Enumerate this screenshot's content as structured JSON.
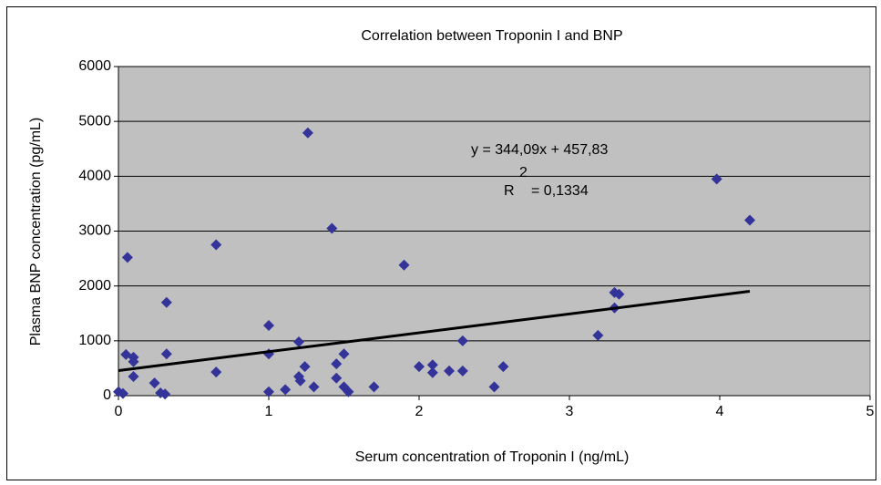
{
  "chart_data": {
    "type": "scatter",
    "title": "Correlation between Troponin I and BNP",
    "x_label": "Serum concentration of Troponin I (ng/mL)",
    "y_label": "Plasma BNP concentration (pg/mL)",
    "series": [
      {
        "color": "#333399",
        "x": [
          0,
          0.03,
          0.05,
          0.06,
          0.1,
          0.1,
          0.1,
          0.24,
          0.28,
          0.31,
          0.32,
          0.32,
          0.65,
          0.65,
          1.0,
          1.0,
          1.0,
          1.11,
          1.2,
          1.2,
          1.21,
          1.24,
          1.26,
          1.3,
          1.42,
          1.45,
          1.45,
          1.5,
          1.5,
          1.53,
          1.7,
          1.9,
          2.0,
          2.09,
          2.09,
          2.2,
          2.29,
          2.29,
          2.5,
          2.56,
          3.19,
          3.3,
          3.33,
          3.3,
          3.98,
          4.2
        ],
        "values": [
          70,
          40,
          750,
          2520,
          700,
          620,
          350,
          230,
          50,
          30,
          1700,
          760,
          2750,
          430,
          1280,
          760,
          70,
          110,
          980,
          350,
          270,
          530,
          4790,
          160,
          3050,
          580,
          320,
          760,
          160,
          70,
          160,
          2380,
          530,
          560,
          420,
          450,
          1000,
          450,
          160,
          530,
          1100,
          1880,
          1850,
          1600,
          3950,
          3200
        ]
      }
    ],
    "trendline": {
      "slope": 344.09,
      "intercept": 457.83,
      "x": [
        0,
        4.2
      ],
      "color": "#000000"
    },
    "annotations": [
      "y = 344,09x + 457,83",
      "R",
      "2",
      "= 0,1334"
    ],
    "xlim": [
      0,
      5
    ],
    "xticks": [
      0,
      1,
      2,
      3,
      4,
      5
    ],
    "ylim": [
      0,
      6000
    ],
    "yticks": [
      0,
      1000,
      2000,
      3000,
      4000,
      5000,
      6000
    ],
    "grid": true,
    "plot_background": "#c0c0c0"
  }
}
